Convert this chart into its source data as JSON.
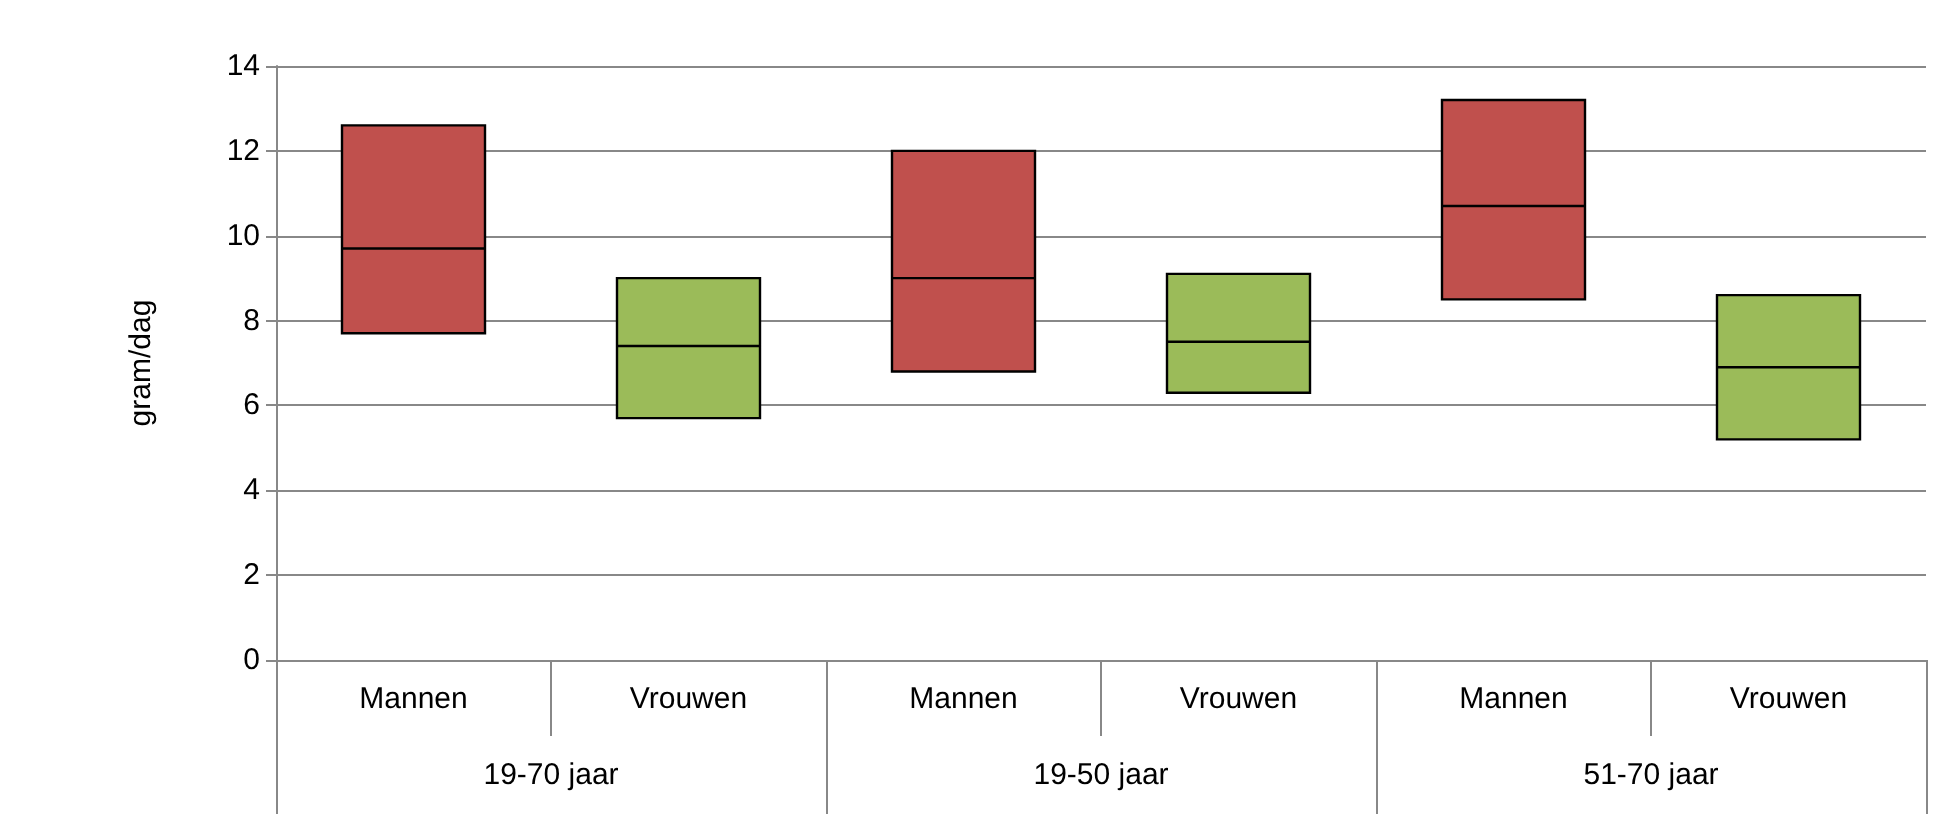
{
  "chart_data": {
    "type": "box",
    "ylabel": "gram/dag",
    "categories": [
      "Mannen",
      "Vrouwen",
      "Mannen",
      "Vrouwen",
      "Mannen",
      "Vrouwen"
    ],
    "annotations": [
      "19-70 jaar",
      "19-50 jaar",
      "51-70 jaar"
    ],
    "colors": [
      "#c0504d",
      "#9bbb59",
      "#c0504d",
      "#9bbb59",
      "#c0504d",
      "#9bbb59"
    ],
    "boxes": [
      {
        "low": 7.7,
        "q1": 7.7,
        "median": 9.7,
        "q3": 12.6,
        "high": 12.6
      },
      {
        "low": 5.7,
        "q1": 5.7,
        "median": 7.4,
        "q3": 9.0,
        "high": 9.0
      },
      {
        "low": 6.8,
        "q1": 6.8,
        "median": 9.0,
        "q3": 12.0,
        "high": 12.0
      },
      {
        "low": 6.3,
        "q1": 6.3,
        "median": 7.5,
        "q3": 9.1,
        "high": 9.1
      },
      {
        "low": 8.5,
        "q1": 8.5,
        "median": 10.7,
        "q3": 13.2,
        "high": 13.2
      },
      {
        "low": 5.2,
        "q1": 5.2,
        "median": 6.9,
        "q3": 8.6,
        "high": 8.6
      }
    ],
    "ylim": [
      0,
      14
    ],
    "yticks": [
      0,
      2,
      4,
      6,
      8,
      10,
      12,
      14
    ],
    "grid": "y"
  }
}
